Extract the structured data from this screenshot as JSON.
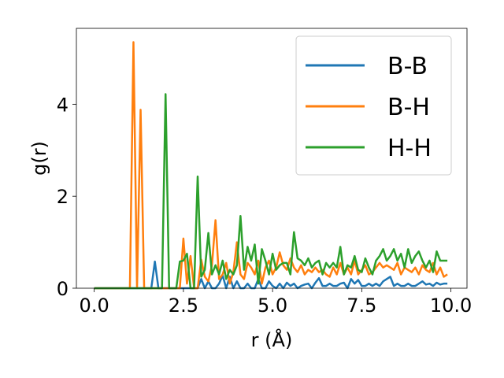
{
  "chart_data": {
    "type": "line",
    "title": "",
    "xlabel": "r (Å)",
    "ylabel": "g(r)",
    "xlim": [
      -0.5,
      10.45
    ],
    "ylim": [
      0,
      5.65
    ],
    "xticks": [
      0.0,
      2.5,
      5.0,
      7.5,
      10.0
    ],
    "xtick_labels": [
      "0.0",
      "2.5",
      "5.0",
      "7.5",
      "10.0"
    ],
    "yticks": [
      0,
      2,
      4
    ],
    "ytick_labels": [
      "0",
      "2",
      "4"
    ],
    "grid": false,
    "legend_position": "top-right",
    "x": [
      0.0,
      0.1,
      0.2,
      0.3,
      0.4,
      0.5,
      0.6,
      0.7,
      0.8,
      0.9,
      1.0,
      1.1,
      1.2,
      1.3,
      1.4,
      1.5,
      1.6,
      1.7,
      1.8,
      1.9,
      2.0,
      2.1,
      2.2,
      2.3,
      2.4,
      2.5,
      2.6,
      2.7,
      2.8,
      2.9,
      3.0,
      3.1,
      3.2,
      3.3,
      3.4,
      3.5,
      3.6,
      3.7,
      3.8,
      3.9,
      4.0,
      4.1,
      4.2,
      4.3,
      4.4,
      4.5,
      4.6,
      4.7,
      4.8,
      4.9,
      5.0,
      5.1,
      5.2,
      5.3,
      5.4,
      5.5,
      5.6,
      5.7,
      5.8,
      5.9,
      6.0,
      6.1,
      6.2,
      6.3,
      6.4,
      6.5,
      6.6,
      6.7,
      6.8,
      6.9,
      7.0,
      7.1,
      7.2,
      7.3,
      7.4,
      7.5,
      7.6,
      7.7,
      7.8,
      7.9,
      8.0,
      8.1,
      8.2,
      8.3,
      8.4,
      8.5,
      8.6,
      8.7,
      8.8,
      8.9,
      9.0,
      9.1,
      9.2,
      9.3,
      9.4,
      9.5,
      9.6,
      9.7,
      9.8,
      9.9
    ],
    "series": [
      {
        "name": "B-B",
        "color": "#1f77b4",
        "values": [
          0,
          0,
          0,
          0,
          0,
          0,
          0,
          0,
          0,
          0,
          0,
          0,
          0,
          0,
          0,
          0,
          0,
          0.58,
          0,
          0,
          0,
          0,
          0,
          0,
          0,
          0,
          0,
          0,
          0,
          0,
          0.2,
          0,
          0.15,
          0,
          0,
          0.1,
          0.28,
          0,
          0.25,
          0,
          0.15,
          0,
          0,
          0.1,
          0,
          0,
          0.2,
          0,
          0,
          0.15,
          0.05,
          0,
          0.1,
          0,
          0.12,
          0.05,
          0.1,
          0,
          0.05,
          0.08,
          0.1,
          0,
          0.12,
          0.22,
          0.05,
          0.05,
          0.1,
          0.05,
          0.05,
          0.1,
          0.12,
          0,
          0.2,
          0.1,
          0.18,
          0.05,
          0.05,
          0.1,
          0.05,
          0.1,
          0.05,
          0.15,
          0.2,
          0.25,
          0.05,
          0.1,
          0.05,
          0.05,
          0.1,
          0.05,
          0.05,
          0.1,
          0.15,
          0.08,
          0.1,
          0.05,
          0.12,
          0.08,
          0.1,
          0.1
        ]
      },
      {
        "name": "B-H",
        "color": "#ff7f0e",
        "values": [
          0,
          0,
          0,
          0,
          0,
          0,
          0,
          0,
          0,
          0,
          0,
          5.35,
          0,
          3.88,
          0,
          0,
          0,
          0,
          0,
          0,
          0,
          0,
          0,
          0,
          0,
          1.08,
          0.1,
          0.7,
          0,
          0,
          0.62,
          0.25,
          0.15,
          0.5,
          1.48,
          0.2,
          0.3,
          0.55,
          0.1,
          0.35,
          1.0,
          0.3,
          0.2,
          0.55,
          0.45,
          0.3,
          0.6,
          0.1,
          0.45,
          0.6,
          0.3,
          0.45,
          0.78,
          0.5,
          0.4,
          0.65,
          0.45,
          0.35,
          0.5,
          0.3,
          0.4,
          0.35,
          0.45,
          0.35,
          0.4,
          0.3,
          0.25,
          0.45,
          0.3,
          0.55,
          0.3,
          0.45,
          0.3,
          0.6,
          0.3,
          0.4,
          0.5,
          0.3,
          0.35,
          0.45,
          0.55,
          0.45,
          0.5,
          0.45,
          0.4,
          0.55,
          0.3,
          0.45,
          0.4,
          0.35,
          0.45,
          0.3,
          0.5,
          0.4,
          0.35,
          0.55,
          0.3,
          0.45,
          0.25,
          0.3
        ]
      },
      {
        "name": "H-H",
        "color": "#2ca02c",
        "values": [
          0,
          0,
          0,
          0,
          0,
          0,
          0,
          0,
          0,
          0,
          0,
          0,
          0,
          0,
          0,
          0,
          0,
          0,
          0,
          0,
          4.22,
          0,
          0,
          0,
          0.58,
          0.6,
          0.75,
          0,
          0,
          2.43,
          0.25,
          0.4,
          1.2,
          0.3,
          0.5,
          0.3,
          0.6,
          0.2,
          0.4,
          0.3,
          0.5,
          1.57,
          0.4,
          0.9,
          0.6,
          0.95,
          0.1,
          0.85,
          0.6,
          0.3,
          0.75,
          0.4,
          0.5,
          0.55,
          0.55,
          0.3,
          1.22,
          0.65,
          0.6,
          0.5,
          0.65,
          0.45,
          0.55,
          0.6,
          0.3,
          0.55,
          0.45,
          0.55,
          0.45,
          0.9,
          0.3,
          0.5,
          0.45,
          0.7,
          0.4,
          0.35,
          0.65,
          0.45,
          0.3,
          0.6,
          0.7,
          0.85,
          0.6,
          0.7,
          0.85,
          0.6,
          0.75,
          0.45,
          0.85,
          0.55,
          0.7,
          0.8,
          0.6,
          0.45,
          0.6,
          0.35,
          0.8,
          0.6,
          0.6,
          0.6
        ]
      }
    ]
  }
}
